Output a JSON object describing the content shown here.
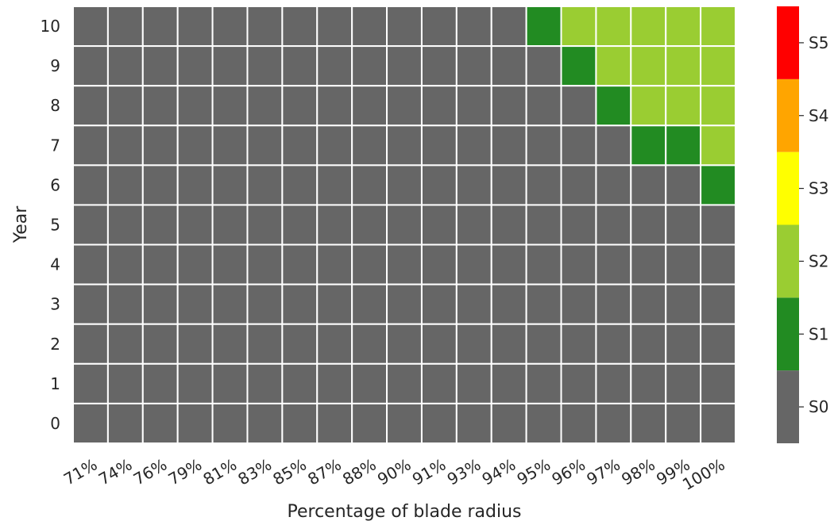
{
  "chart_data": {
    "type": "heatmap",
    "title": "",
    "xlabel": "Percentage of blade radius",
    "ylabel": "Year",
    "x_categories": [
      "71%",
      "74%",
      "76%",
      "79%",
      "81%",
      "83%",
      "85%",
      "87%",
      "88%",
      "90%",
      "91%",
      "93%",
      "94%",
      "95%",
      "96%",
      "97%",
      "98%",
      "99%",
      "100%"
    ],
    "y_categories": [
      "10",
      "9",
      "8",
      "7",
      "6",
      "5",
      "4",
      "3",
      "2",
      "1",
      "0"
    ],
    "values": [
      [
        0,
        0,
        0,
        0,
        0,
        0,
        0,
        0,
        0,
        0,
        0,
        0,
        0,
        1,
        2,
        2,
        2,
        2,
        2
      ],
      [
        0,
        0,
        0,
        0,
        0,
        0,
        0,
        0,
        0,
        0,
        0,
        0,
        0,
        0,
        1,
        2,
        2,
        2,
        2
      ],
      [
        0,
        0,
        0,
        0,
        0,
        0,
        0,
        0,
        0,
        0,
        0,
        0,
        0,
        0,
        0,
        1,
        2,
        2,
        2
      ],
      [
        0,
        0,
        0,
        0,
        0,
        0,
        0,
        0,
        0,
        0,
        0,
        0,
        0,
        0,
        0,
        0,
        1,
        1,
        2
      ],
      [
        0,
        0,
        0,
        0,
        0,
        0,
        0,
        0,
        0,
        0,
        0,
        0,
        0,
        0,
        0,
        0,
        0,
        0,
        1
      ],
      [
        0,
        0,
        0,
        0,
        0,
        0,
        0,
        0,
        0,
        0,
        0,
        0,
        0,
        0,
        0,
        0,
        0,
        0,
        0
      ],
      [
        0,
        0,
        0,
        0,
        0,
        0,
        0,
        0,
        0,
        0,
        0,
        0,
        0,
        0,
        0,
        0,
        0,
        0,
        0
      ],
      [
        0,
        0,
        0,
        0,
        0,
        0,
        0,
        0,
        0,
        0,
        0,
        0,
        0,
        0,
        0,
        0,
        0,
        0,
        0
      ],
      [
        0,
        0,
        0,
        0,
        0,
        0,
        0,
        0,
        0,
        0,
        0,
        0,
        0,
        0,
        0,
        0,
        0,
        0,
        0
      ],
      [
        0,
        0,
        0,
        0,
        0,
        0,
        0,
        0,
        0,
        0,
        0,
        0,
        0,
        0,
        0,
        0,
        0,
        0,
        0
      ],
      [
        0,
        0,
        0,
        0,
        0,
        0,
        0,
        0,
        0,
        0,
        0,
        0,
        0,
        0,
        0,
        0,
        0,
        0,
        0
      ]
    ],
    "colorbar": {
      "labels": [
        "S0",
        "S1",
        "S2",
        "S3",
        "S4",
        "S5"
      ],
      "colors": [
        "#666666",
        "#228b22",
        "#9acd32",
        "#ffff00",
        "#ffa500",
        "#ff0000"
      ]
    },
    "grid_line_color": "#ffffff",
    "x_tick_rotation_deg": -30
  }
}
